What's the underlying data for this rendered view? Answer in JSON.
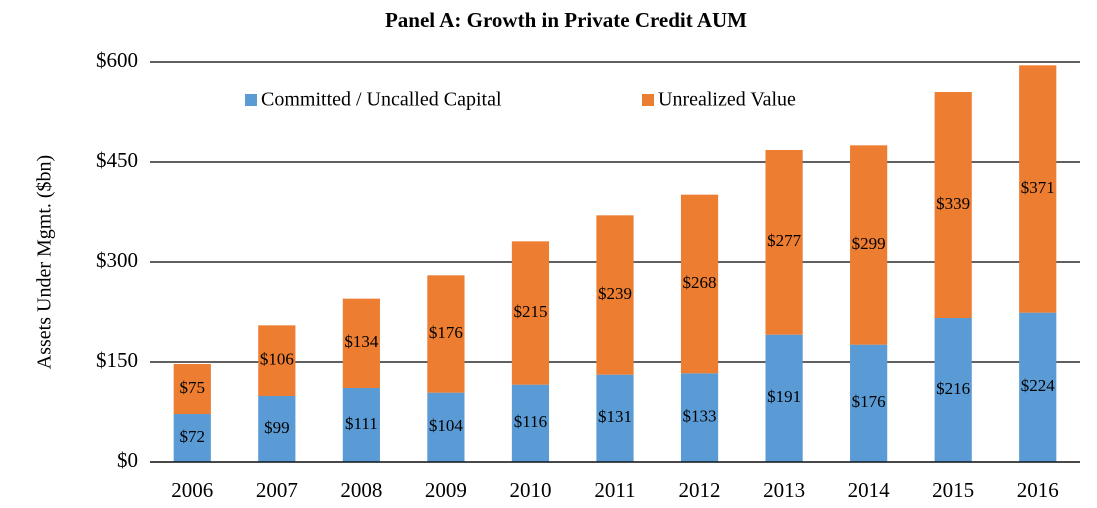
{
  "chart_data": {
    "type": "stacked-bar",
    "title": "Panel A: Growth in Private Credit AUM",
    "y_label": "Assets Under Mgmt. ($bn)",
    "categories": [
      "2006",
      "2007",
      "2008",
      "2009",
      "2010",
      "2011",
      "2012",
      "2013",
      "2014",
      "2015",
      "2016"
    ],
    "series": [
      {
        "name": "Committed / Uncalled Capital",
        "color": "#5b9bd5",
        "values": [
          72,
          99,
          111,
          104,
          116,
          131,
          133,
          191,
          176,
          216,
          224
        ],
        "value_labels": [
          "$72",
          "$99",
          "$111",
          "$104",
          "$116",
          "$131",
          "$133",
          "$191",
          "$176",
          "$216",
          "$224"
        ]
      },
      {
        "name": "Unrealized Value",
        "color": "#ed7d31",
        "values": [
          75,
          106,
          134,
          176,
          215,
          239,
          268,
          277,
          299,
          339,
          371
        ],
        "value_labels": [
          "$75",
          "$106",
          "$134",
          "$176",
          "$215",
          "$239",
          "$268",
          "$277",
          "$299",
          "$339",
          "$371"
        ]
      }
    ],
    "ylim": [
      0,
      600
    ],
    "yticks": [
      {
        "value": 0,
        "label": "$0"
      },
      {
        "value": 150,
        "label": "$150"
      },
      {
        "value": 300,
        "label": "$300"
      },
      {
        "value": 450,
        "label": "$450"
      },
      {
        "value": 600,
        "label": "$600"
      }
    ],
    "grid": true
  }
}
